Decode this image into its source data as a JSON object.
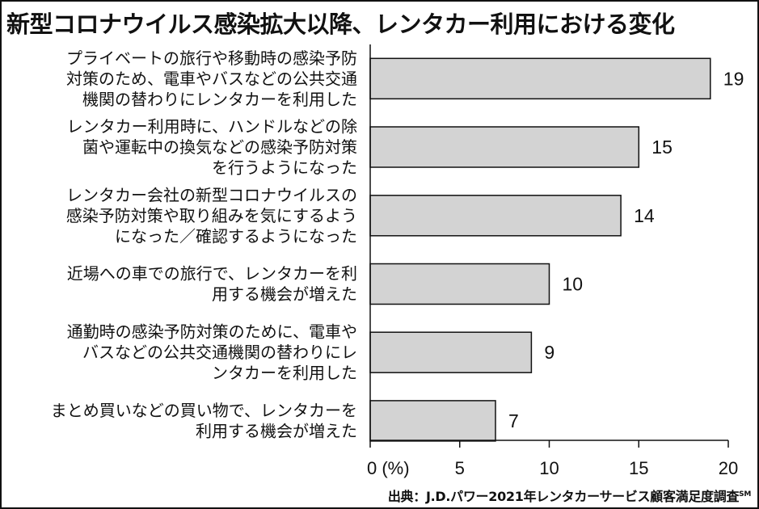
{
  "title": "新型コロナウイルス感染拡大以降、レンタカー利用における変化",
  "chart_data": {
    "type": "bar",
    "orientation": "horizontal",
    "categories": [
      [
        "プライベートの旅行や移動時の感染予防",
        "対策のため、電車やバスなどの公共交通",
        "機関の替わりにレンタカーを利用した"
      ],
      [
        "レンタカー利用時に、ハンドルなどの除",
        "菌や運転中の換気などの感染予防対策",
        "を行うようになった"
      ],
      [
        "レンタカー会社の新型コロナウイルスの",
        "感染予防対策や取り組みを気にするよう",
        "になった／確認するようになった"
      ],
      [
        "近場への車での旅行で、レンタカーを利",
        "用する機会が増えた"
      ],
      [
        "通勤時の感染予防対策のために、電車や",
        "バスなどの公共交通機関の替わりにレ",
        "ンタカーを利用した"
      ],
      [
        "まとめ買いなどの買い物で、レンタカーを",
        "利用する機会が増えた"
      ]
    ],
    "values": [
      19,
      15,
      14,
      10,
      9,
      7
    ],
    "value_labels": [
      "19",
      "15",
      "14",
      "10",
      "9",
      "7"
    ],
    "xlim": [
      0,
      20
    ],
    "ticks": [
      0,
      5,
      10,
      15,
      20
    ],
    "tick_labels": [
      "0 (%)",
      "5",
      "10",
      "15",
      "20"
    ],
    "bar_color": "#d3d3d3",
    "bar_stroke": "#111111",
    "grid": false
  },
  "source": {
    "text": "出典：J.D.パワー2021年レンタカーサービス顧客満足度調査",
    "mark": "SM"
  }
}
